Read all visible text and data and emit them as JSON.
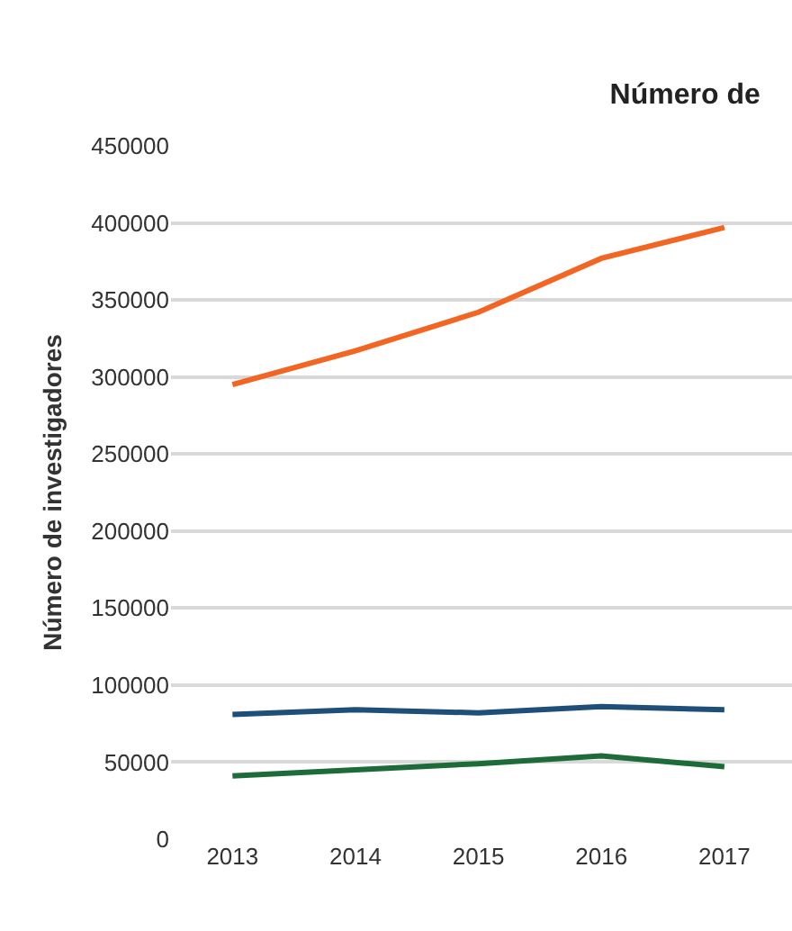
{
  "chart_data": {
    "type": "line",
    "title": "Número de",
    "ylabel": "Número de investigadores",
    "x": [
      2013,
      2014,
      2015,
      2016,
      2017
    ],
    "xlim": [
      2012.5,
      2017.55
    ],
    "xticks": [
      2013,
      2014,
      2015,
      2016,
      2017
    ],
    "ylim": [
      0,
      450000
    ],
    "yticks": [
      0,
      50000,
      100000,
      150000,
      200000,
      250000,
      300000,
      350000,
      400000,
      450000
    ],
    "grid": "y",
    "marker": "none",
    "line_style": "solid",
    "series": [
      {
        "color": "#f26522",
        "values": [
          295000,
          317000,
          342000,
          377000,
          397000
        ]
      },
      {
        "color": "#1f4e79",
        "values": [
          81000,
          84000,
          82000,
          86000,
          84000
        ]
      },
      {
        "color": "#1e6b3a",
        "values": [
          41000,
          45000,
          49000,
          54000,
          47000
        ]
      }
    ]
  }
}
